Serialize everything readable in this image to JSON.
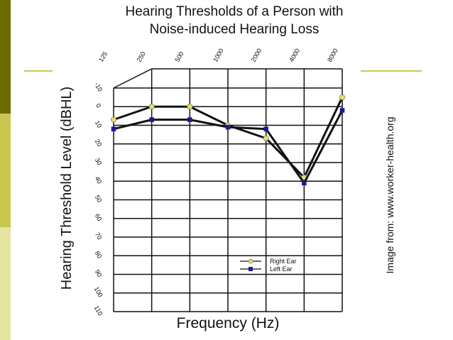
{
  "slide": {
    "credit": "Image from:  www.worker-health.org",
    "accent_dark": "#6b6b00",
    "accent_mid": "#c8c850",
    "accent_light": "#e4e4a0"
  },
  "chart_data": {
    "type": "line",
    "title_line1": "Hearing Thresholds of a Person with",
    "title_line2": "Noise-induced Hearing Loss",
    "xlabel": "Frequency (Hz)",
    "ylabel": "Hearing Threshold Level (dBHL)",
    "categories": [
      "125",
      "250",
      "500",
      "1000",
      "2000",
      "4000",
      "8000"
    ],
    "ylim": [
      -10,
      110
    ],
    "y_inverted": true,
    "y_ticks": [
      -10,
      0,
      10,
      20,
      30,
      40,
      50,
      60,
      70,
      80,
      90,
      100,
      110
    ],
    "grid": true,
    "legend_position": "bottom-right",
    "series": [
      {
        "name": "Right Ear",
        "marker": "circle",
        "marker_color": "#e8e060",
        "x_index": [
          0,
          1,
          2,
          3,
          4,
          5,
          6
        ],
        "values": [
          7,
          0,
          0,
          10,
          17,
          38,
          -5
        ]
      },
      {
        "name": "Left Ear",
        "marker": "square",
        "marker_color": "#1a1a9a",
        "x_index": [
          0,
          1,
          2,
          3,
          4,
          5,
          6
        ],
        "values": [
          12,
          7,
          7,
          11,
          12,
          41,
          2
        ]
      }
    ]
  }
}
